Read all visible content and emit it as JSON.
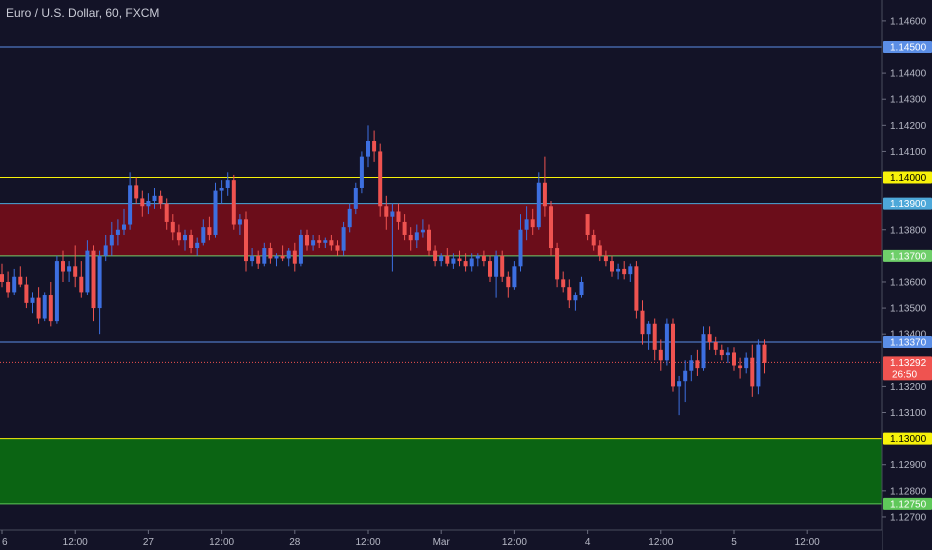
{
  "chart_data": {
    "type": "candlestick",
    "title": "Euro / U.S. Dollar, 60, FXCM",
    "ylim": [
      1.1265,
      1.1468
    ],
    "y_ticks": [
      "1.14600",
      "1.14400",
      "1.14300",
      "1.14200",
      "1.14100",
      "1.13800",
      "1.13600",
      "1.13500",
      "1.13400",
      "1.13200",
      "1.13100",
      "1.12900",
      "1.12800",
      "1.12700"
    ],
    "x_ticks": [
      {
        "label": "6",
        "i": 0
      },
      {
        "label": "12:00",
        "i": 12
      },
      {
        "label": "27",
        "i": 24
      },
      {
        "label": "12:00",
        "i": 36
      },
      {
        "label": "28",
        "i": 48
      },
      {
        "label": "12:00",
        "i": 60
      },
      {
        "label": "Mar",
        "i": 72
      },
      {
        "label": "12:00",
        "i": 84
      },
      {
        "label": "4",
        "i": 96
      },
      {
        "label": "12:00",
        "i": 108
      },
      {
        "label": "5",
        "i": 120
      },
      {
        "label": "12:00",
        "i": 132
      }
    ],
    "zones": [
      {
        "name": "resistance-zone",
        "from": 1.137,
        "to": 1.139,
        "color": "#6b0d1a"
      },
      {
        "name": "support-zone",
        "from": 1.1275,
        "to": 1.13,
        "color": "#0b6413"
      }
    ],
    "levels": [
      {
        "value": 1.145,
        "label": "1.14500",
        "color": "#5b8ee6",
        "tag_text": "#ffffff"
      },
      {
        "value": 1.14,
        "label": "1.14000",
        "color": "#f7f20a",
        "tag_text": "#000000"
      },
      {
        "value": 1.139,
        "label": "1.13900",
        "color": "#4da8d9",
        "tag_text": "#ffffff"
      },
      {
        "value": 1.137,
        "label": "1.13700",
        "color": "#6fcf6a",
        "tag_text": "#ffffff"
      },
      {
        "value": 1.1337,
        "label": "1.13370",
        "color": "#5b8ee6",
        "tag_text": "#ffffff"
      },
      {
        "value": 1.13,
        "label": "1.13000",
        "color": "#f7f20a",
        "tag_text": "#000000"
      },
      {
        "value": 1.1275,
        "label": "1.12750",
        "color": "#5fc85a",
        "tag_text": "#ffffff"
      }
    ],
    "current_price": {
      "value": 1.13292,
      "label": "1.13292",
      "countdown": "26:50",
      "color": "#ef5350"
    },
    "up_color": "#3d6fe0",
    "down_color": "#ef5350",
    "candles": [
      [
        1.1363,
        1.1367,
        1.1358,
        1.136
      ],
      [
        1.136,
        1.1364,
        1.1354,
        1.1356
      ],
      [
        1.1356,
        1.1365,
        1.1355,
        1.1362
      ],
      [
        1.1362,
        1.1366,
        1.1358,
        1.1359
      ],
      [
        1.1359,
        1.1362,
        1.135,
        1.1352
      ],
      [
        1.1352,
        1.1356,
        1.1348,
        1.1354
      ],
      [
        1.1354,
        1.1358,
        1.1344,
        1.1346
      ],
      [
        1.1346,
        1.1356,
        1.1345,
        1.1355
      ],
      [
        1.1355,
        1.136,
        1.1343,
        1.1345
      ],
      [
        1.1345,
        1.137,
        1.1344,
        1.1368
      ],
      [
        1.1368,
        1.1372,
        1.136,
        1.1364
      ],
      [
        1.1364,
        1.1368,
        1.136,
        1.1366
      ],
      [
        1.1366,
        1.1374,
        1.1358,
        1.1362
      ],
      [
        1.1362,
        1.1368,
        1.1354,
        1.1356
      ],
      [
        1.1356,
        1.1376,
        1.1355,
        1.1372
      ],
      [
        1.1372,
        1.1374,
        1.1345,
        1.135
      ],
      [
        1.135,
        1.1372,
        1.134,
        1.137
      ],
      [
        1.137,
        1.1378,
        1.1368,
        1.1374
      ],
      [
        1.1374,
        1.1383,
        1.137,
        1.1378
      ],
      [
        1.1378,
        1.1384,
        1.1374,
        1.138
      ],
      [
        1.138,
        1.1388,
        1.1378,
        1.1382
      ],
      [
        1.1382,
        1.1402,
        1.138,
        1.1397
      ],
      [
        1.1397,
        1.14,
        1.139,
        1.1392
      ],
      [
        1.1392,
        1.1395,
        1.1385,
        1.1389
      ],
      [
        1.1389,
        1.1394,
        1.1386,
        1.1391
      ],
      [
        1.1391,
        1.1396,
        1.1388,
        1.1393
      ],
      [
        1.1393,
        1.1395,
        1.1388,
        1.139
      ],
      [
        1.139,
        1.1392,
        1.138,
        1.1383
      ],
      [
        1.1383,
        1.1386,
        1.1376,
        1.1379
      ],
      [
        1.1379,
        1.1382,
        1.1374,
        1.1376
      ],
      [
        1.1376,
        1.138,
        1.1372,
        1.1378
      ],
      [
        1.1378,
        1.138,
        1.1371,
        1.1373
      ],
      [
        1.1373,
        1.1377,
        1.137,
        1.1375
      ],
      [
        1.1375,
        1.1384,
        1.1374,
        1.1381
      ],
      [
        1.1381,
        1.1385,
        1.1376,
        1.1378
      ],
      [
        1.1378,
        1.1398,
        1.1377,
        1.1395
      ],
      [
        1.1395,
        1.1399,
        1.139,
        1.1396
      ],
      [
        1.1396,
        1.1402,
        1.1393,
        1.1399
      ],
      [
        1.1399,
        1.1401,
        1.138,
        1.1382
      ],
      [
        1.1382,
        1.1386,
        1.1378,
        1.1384
      ],
      [
        1.1384,
        1.1387,
        1.1364,
        1.1368
      ],
      [
        1.1368,
        1.1373,
        1.1366,
        1.137
      ],
      [
        1.137,
        1.1372,
        1.1365,
        1.1367
      ],
      [
        1.1367,
        1.1375,
        1.1366,
        1.1373
      ],
      [
        1.1373,
        1.1375,
        1.1367,
        1.1369
      ],
      [
        1.1369,
        1.1371,
        1.1366,
        1.137
      ],
      [
        1.137,
        1.1374,
        1.1368,
        1.1369
      ],
      [
        1.1369,
        1.1373,
        1.1366,
        1.1372
      ],
      [
        1.1372,
        1.1375,
        1.1364,
        1.1367
      ],
      [
        1.1367,
        1.138,
        1.1366,
        1.1378
      ],
      [
        1.1378,
        1.138,
        1.1372,
        1.1374
      ],
      [
        1.1374,
        1.1378,
        1.1372,
        1.1376
      ],
      [
        1.1376,
        1.1378,
        1.1373,
        1.1375
      ],
      [
        1.1375,
        1.1377,
        1.1373,
        1.1376
      ],
      [
        1.1376,
        1.1378,
        1.1372,
        1.1374
      ],
      [
        1.1374,
        1.1376,
        1.137,
        1.1372
      ],
      [
        1.1372,
        1.1383,
        1.137,
        1.1381
      ],
      [
        1.1381,
        1.139,
        1.1379,
        1.1388
      ],
      [
        1.1388,
        1.1398,
        1.1386,
        1.1396
      ],
      [
        1.1396,
        1.141,
        1.1394,
        1.1408
      ],
      [
        1.1408,
        1.142,
        1.1404,
        1.1414
      ],
      [
        1.1414,
        1.1418,
        1.1406,
        1.141
      ],
      [
        1.141,
        1.1413,
        1.1385,
        1.1389
      ],
      [
        1.1389,
        1.1393,
        1.138,
        1.1385
      ],
      [
        1.1385,
        1.139,
        1.1364,
        1.1387
      ],
      [
        1.1387,
        1.139,
        1.138,
        1.1383
      ],
      [
        1.1383,
        1.1386,
        1.1376,
        1.1378
      ],
      [
        1.1378,
        1.1381,
        1.1372,
        1.1376
      ],
      [
        1.1376,
        1.1382,
        1.1373,
        1.1379
      ],
      [
        1.1379,
        1.1384,
        1.1377,
        1.138
      ],
      [
        1.138,
        1.1382,
        1.137,
        1.1372
      ],
      [
        1.1372,
        1.1374,
        1.1366,
        1.1368
      ],
      [
        1.1368,
        1.1371,
        1.1366,
        1.137
      ],
      [
        1.137,
        1.1373,
        1.1366,
        1.1367
      ],
      [
        1.1367,
        1.1371,
        1.1365,
        1.1369
      ],
      [
        1.1369,
        1.1372,
        1.1366,
        1.1368
      ],
      [
        1.1368,
        1.1371,
        1.1364,
        1.1366
      ],
      [
        1.1366,
        1.1371,
        1.1364,
        1.1369
      ],
      [
        1.1369,
        1.1371,
        1.1366,
        1.137
      ],
      [
        1.137,
        1.1372,
        1.1366,
        1.1368
      ],
      [
        1.1368,
        1.137,
        1.136,
        1.1362
      ],
      [
        1.1362,
        1.1372,
        1.1354,
        1.137
      ],
      [
        1.137,
        1.1372,
        1.136,
        1.1362
      ],
      [
        1.1362,
        1.1364,
        1.1354,
        1.1358
      ],
      [
        1.1358,
        1.1368,
        1.1357,
        1.1366
      ],
      [
        1.1366,
        1.1386,
        1.1364,
        1.138
      ],
      [
        1.138,
        1.1389,
        1.1376,
        1.1384
      ],
      [
        1.1384,
        1.1388,
        1.1378,
        1.1381
      ],
      [
        1.1381,
        1.1402,
        1.138,
        1.1398
      ],
      [
        1.1398,
        1.1408,
        1.1385,
        1.1389
      ],
      [
        1.1389,
        1.1391,
        1.137,
        1.1373
      ],
      [
        1.1373,
        1.1375,
        1.1358,
        1.1361
      ],
      [
        1.1361,
        1.1364,
        1.1356,
        1.1358
      ],
      [
        1.1358,
        1.1361,
        1.135,
        1.1353
      ],
      [
        1.1353,
        1.1356,
        1.1349,
        1.1355
      ],
      [
        1.1355,
        1.1362,
        1.1354,
        1.136
      ],
      [
        1.1386,
        1.1386,
        1.1376,
        1.1378
      ],
      [
        1.1378,
        1.138,
        1.1372,
        1.1374
      ],
      [
        1.1374,
        1.1376,
        1.1368,
        1.137
      ],
      [
        1.137,
        1.1372,
        1.1366,
        1.1368
      ],
      [
        1.1368,
        1.137,
        1.1362,
        1.1364
      ],
      [
        1.1364,
        1.1367,
        1.1361,
        1.1365
      ],
      [
        1.1365,
        1.1368,
        1.1361,
        1.1363
      ],
      [
        1.1363,
        1.1367,
        1.136,
        1.1366
      ],
      [
        1.1366,
        1.1368,
        1.1346,
        1.1349
      ],
      [
        1.1349,
        1.1353,
        1.1336,
        1.134
      ],
      [
        1.134,
        1.1345,
        1.1334,
        1.1344
      ],
      [
        1.1344,
        1.1346,
        1.133,
        1.1334
      ],
      [
        1.1334,
        1.1338,
        1.1326,
        1.133
      ],
      [
        1.133,
        1.1346,
        1.1328,
        1.1344
      ],
      [
        1.1344,
        1.1346,
        1.1318,
        1.132
      ],
      [
        1.132,
        1.1324,
        1.1309,
        1.1322
      ],
      [
        1.1322,
        1.133,
        1.1314,
        1.1326
      ],
      [
        1.1326,
        1.1332,
        1.1322,
        1.133
      ],
      [
        1.133,
        1.1334,
        1.1324,
        1.1327
      ],
      [
        1.1327,
        1.1343,
        1.1326,
        1.134
      ],
      [
        1.134,
        1.1343,
        1.1334,
        1.1337
      ],
      [
        1.1337,
        1.1339,
        1.1332,
        1.1334
      ],
      [
        1.1334,
        1.1336,
        1.133,
        1.1332
      ],
      [
        1.1332,
        1.1335,
        1.1329,
        1.1333
      ],
      [
        1.1333,
        1.1335,
        1.1326,
        1.1328
      ],
      [
        1.1328,
        1.1331,
        1.1323,
        1.1327
      ],
      [
        1.1327,
        1.1333,
        1.1325,
        1.1331
      ],
      [
        1.1331,
        1.1336,
        1.1316,
        1.132
      ],
      [
        1.132,
        1.1338,
        1.1317,
        1.1336
      ],
      [
        1.1336,
        1.1338,
        1.1325,
        1.1329
      ]
    ]
  }
}
